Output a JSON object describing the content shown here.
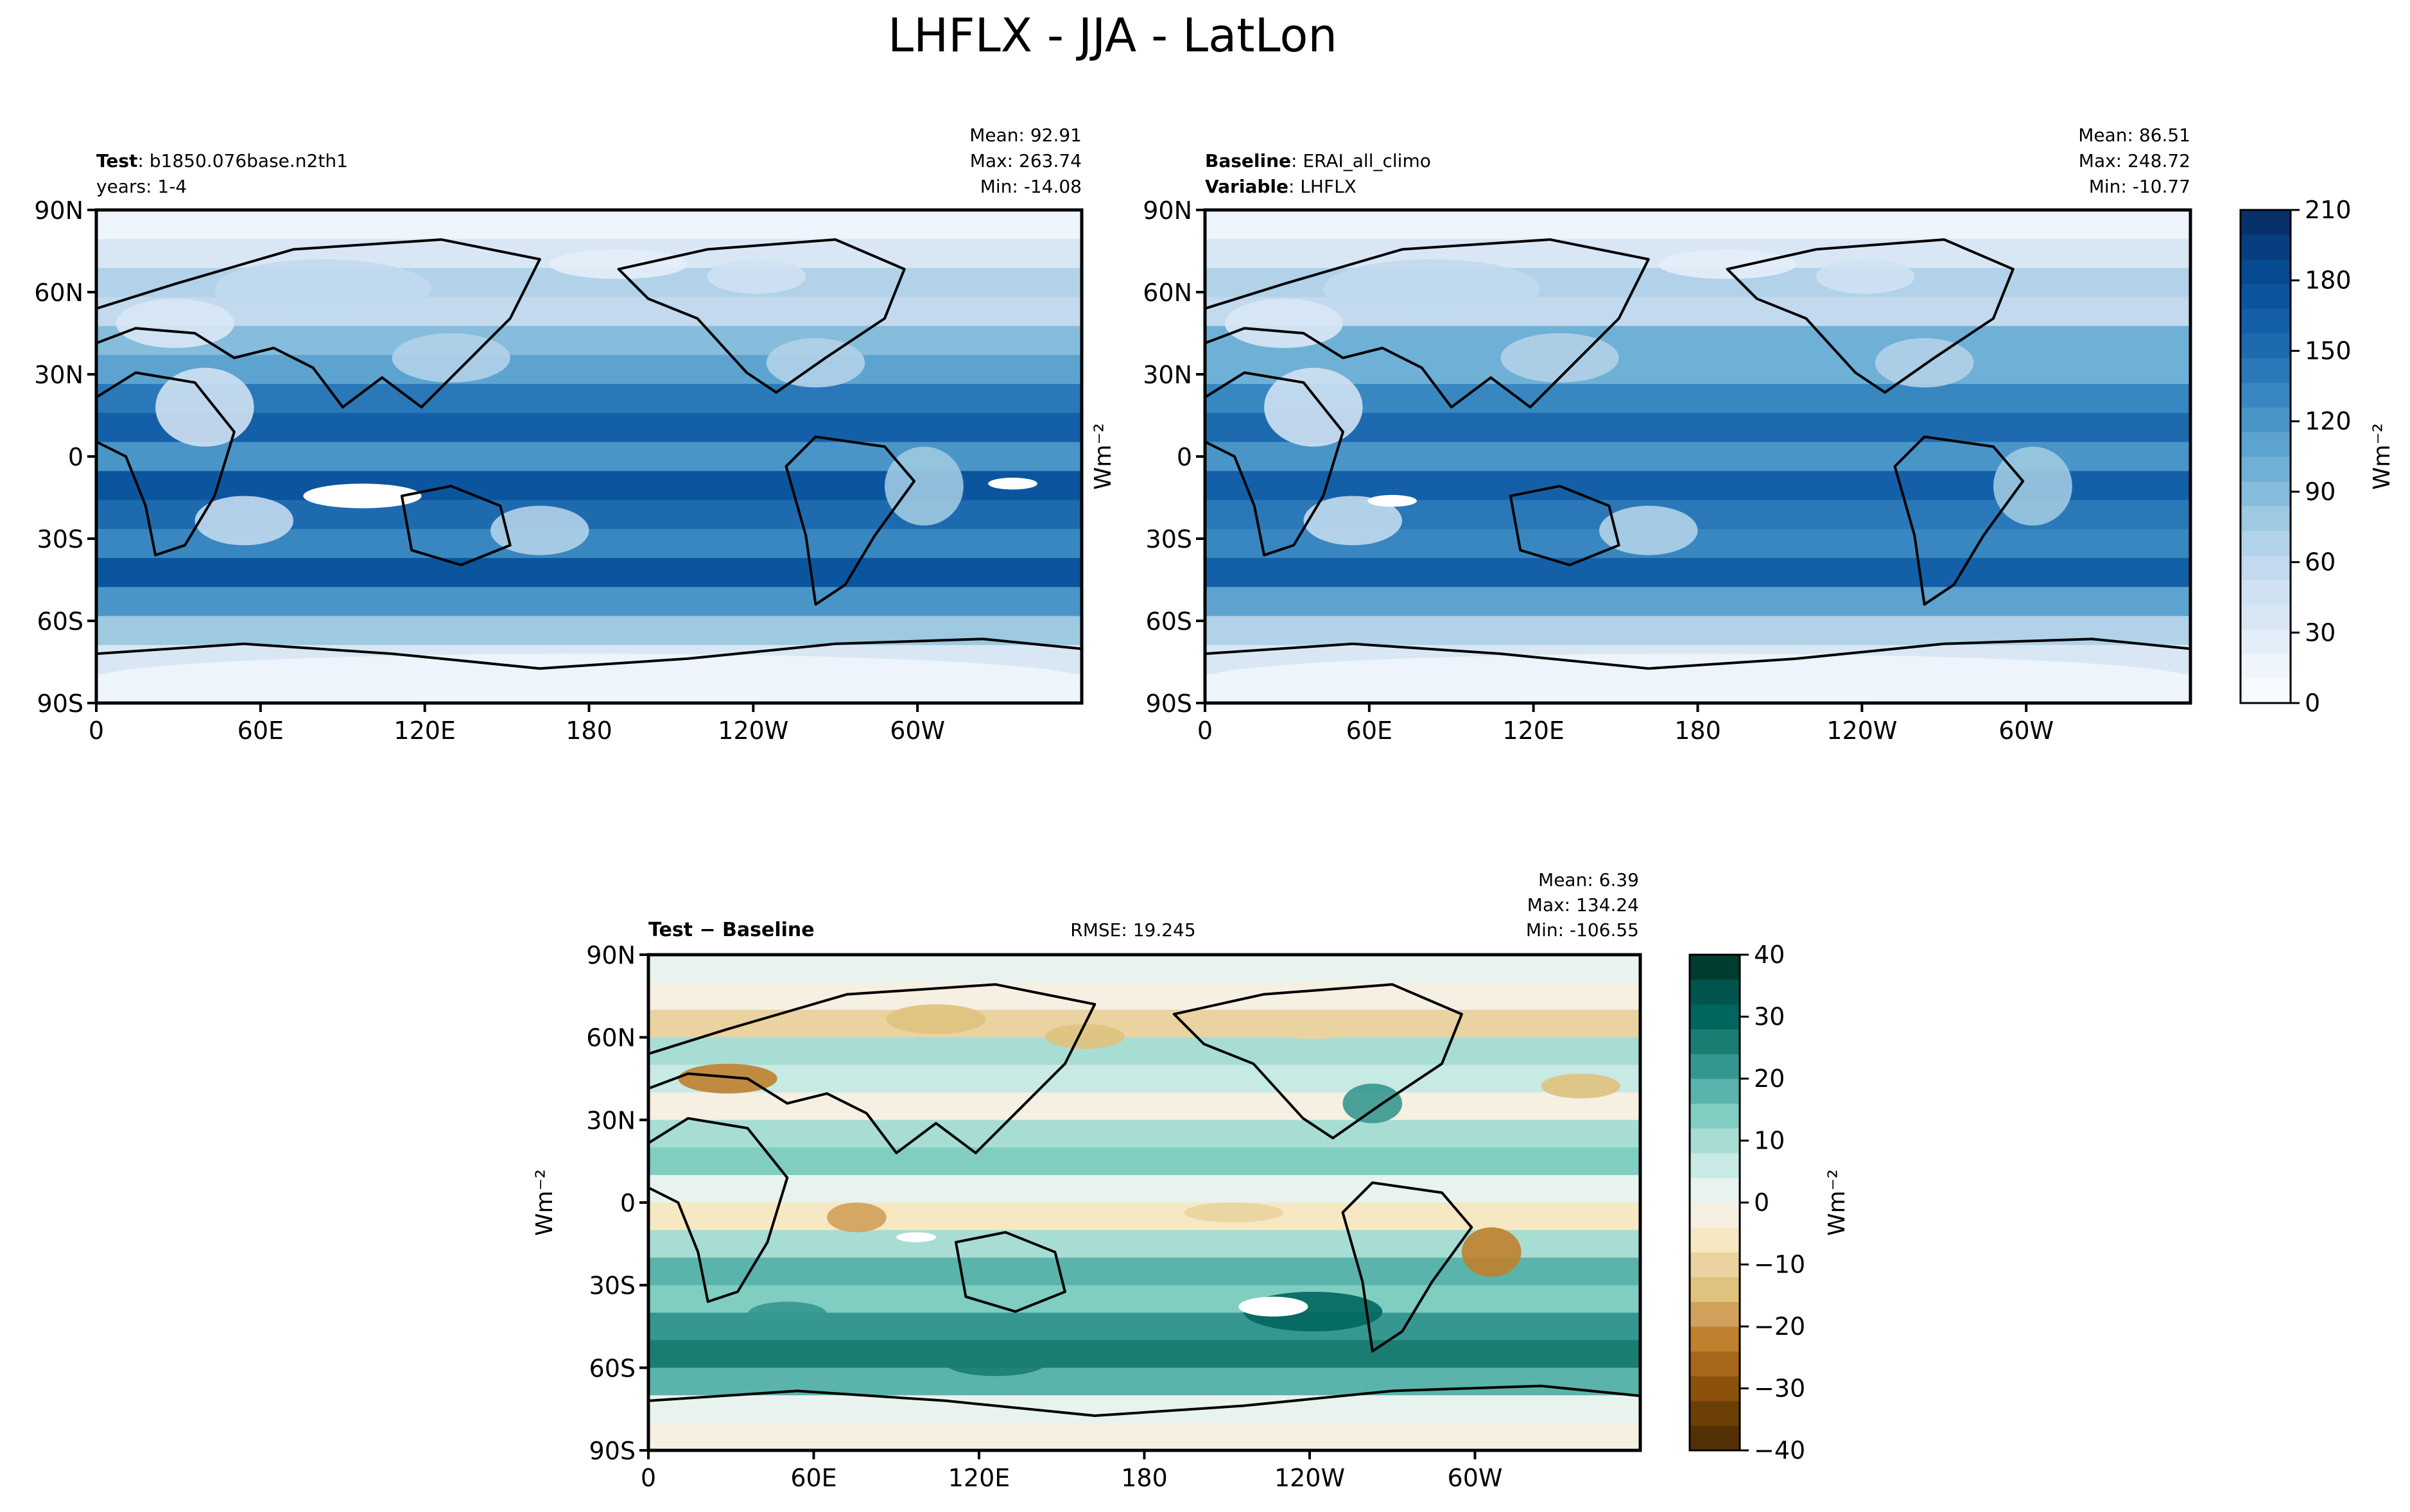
{
  "figure": {
    "title": "LHFLX - JJA - LatLon"
  },
  "panels": {
    "test": {
      "label_bold": "Test",
      "label_rest": ": b1850.076base.n2th1",
      "line2_bold": "",
      "line2_rest": "years: 1-4",
      "stats": {
        "mean": "Mean: 92.91",
        "max": "Max: 263.74",
        "min": "Min: -14.08"
      }
    },
    "baseline": {
      "label_bold": "Baseline",
      "label_rest": ": ERAI_all_climo",
      "line2_bold": "Variable",
      "line2_rest": ": LHFLX",
      "stats": {
        "mean": "Mean: 86.51",
        "max": "Max: 248.72",
        "min": "Min: -10.77"
      }
    },
    "diff": {
      "label_bold": "Test − Baseline",
      "rmse": "RMSE: 19.245",
      "stats": {
        "mean": "Mean:  6.39",
        "max": "Max: 134.24",
        "min": "Min: -106.55"
      }
    }
  },
  "axes": {
    "lat_ticks": [
      "90N",
      "60N",
      "30N",
      "0",
      "30S",
      "60S",
      "90S"
    ],
    "lon_ticks": [
      "0",
      "60E",
      "120E",
      "180",
      "120W",
      "60W"
    ],
    "units": "Wm⁻²"
  },
  "colorbars": {
    "main": {
      "ticks": [
        "210",
        "180",
        "150",
        "120",
        "90",
        "60",
        "30",
        "0"
      ],
      "label": "Wm⁻²",
      "colors": [
        "#f7fbff",
        "#eef5fc",
        "#e4eef9",
        "#d9e7f5",
        "#cfe1f2",
        "#c2d9ee",
        "#b1d2e8",
        "#9dc9e1",
        "#86bcdc",
        "#6fb0d7",
        "#5ca3d0",
        "#4a95c8",
        "#3887c0",
        "#2a78b8",
        "#1e6aaf",
        "#1460a8",
        "#0b559f",
        "#084a91",
        "#083e80",
        "#08306b"
      ]
    },
    "diff": {
      "ticks": [
        "40",
        "30",
        "20",
        "10",
        "0",
        "−10",
        "−20",
        "−30",
        "−40"
      ],
      "label": "Wm⁻²",
      "colors": [
        "#543005",
        "#6c3f07",
        "#8c510a",
        "#a8671a",
        "#bf812d",
        "#d1a05a",
        "#dfc27d",
        "#eaD3a0",
        "#f6e8c3",
        "#f5f0e2",
        "#e8f2ef",
        "#c7eae5",
        "#a8ddd4",
        "#80cdc1",
        "#5ab4ac",
        "#35978f",
        "#1b7d72",
        "#01665e",
        "#00564d",
        "#003c30"
      ]
    }
  },
  "chart_data": {
    "type": "heatmap",
    "title": "LHFLX - JJA - LatLon",
    "maps": [
      {
        "name": "Test",
        "vmin": 0,
        "vmax": 210
      },
      {
        "name": "Baseline",
        "vmin": 0,
        "vmax": 210
      },
      {
        "name": "Test − Baseline",
        "vmin": -40,
        "vmax": 40
      }
    ],
    "xlim": [
      0,
      360
    ],
    "ylim": [
      -90,
      90
    ]
  }
}
